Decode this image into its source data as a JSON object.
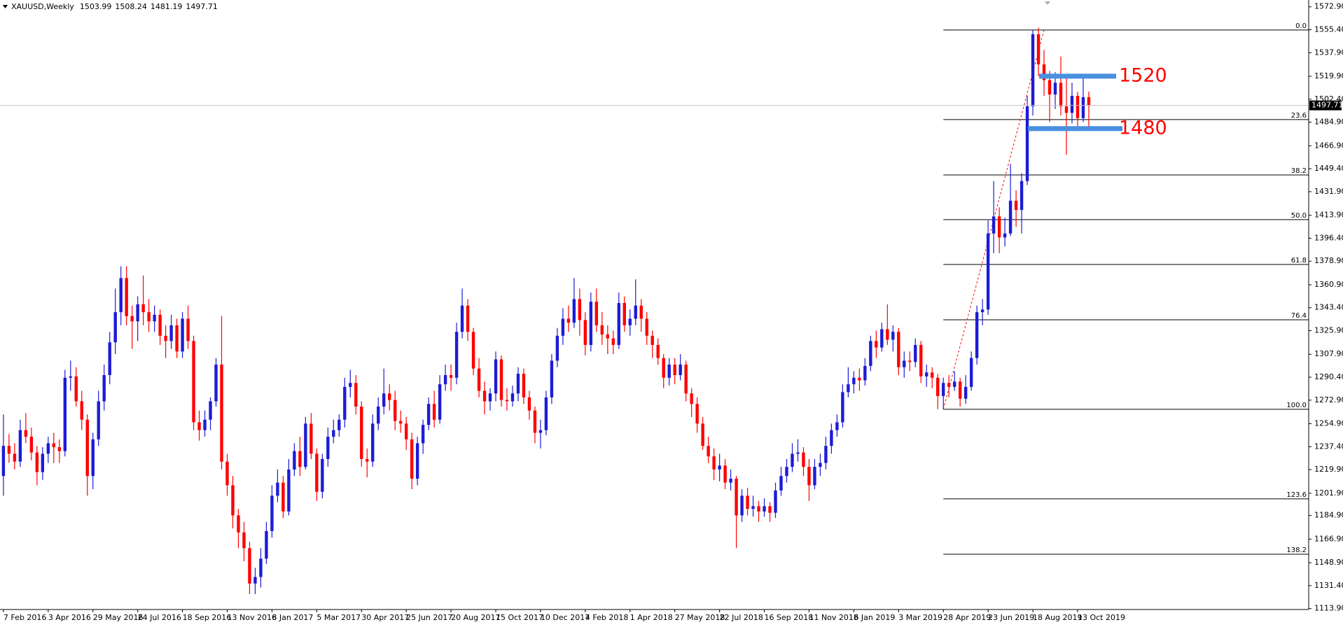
{
  "chart_data": {
    "type": "candlestick",
    "title": "XAUUSD,Weekly",
    "up_color": "#1c1cd6",
    "down_color": "#ff0000",
    "grid": false,
    "ylim": [
      1113.2,
      1578.1
    ],
    "yticks": [
      {
        "value": 1113.9,
        "label": "1113.90"
      },
      {
        "value": 1131.4,
        "label": "1131.40"
      },
      {
        "value": 1148.9,
        "label": "1148.90"
      },
      {
        "value": 1166.9,
        "label": "1166.90"
      },
      {
        "value": 1184.9,
        "label": "1184.90"
      },
      {
        "value": 1201.9,
        "label": "1201.90"
      },
      {
        "value": 1219.9,
        "label": "1219.90"
      },
      {
        "value": 1237.4,
        "label": "1237.40"
      },
      {
        "value": 1254.9,
        "label": "1254.90"
      },
      {
        "value": 1272.9,
        "label": "1272.90"
      },
      {
        "value": 1290.4,
        "label": "1290.40"
      },
      {
        "value": 1307.9,
        "label": "1307.90"
      },
      {
        "value": 1325.9,
        "label": "1325.90"
      },
      {
        "value": 1343.4,
        "label": "1343.40"
      },
      {
        "value": 1360.9,
        "label": "1360.90"
      },
      {
        "value": 1378.9,
        "label": "1378.90"
      },
      {
        "value": 1396.4,
        "label": "1396.40"
      },
      {
        "value": 1413.9,
        "label": "1413.90"
      },
      {
        "value": 1431.9,
        "label": "1431.90"
      },
      {
        "value": 1449.4,
        "label": "1449.40"
      },
      {
        "value": 1466.9,
        "label": "1466.90"
      },
      {
        "value": 1484.9,
        "label": "1484.90"
      },
      {
        "value": 1502.4,
        "label": "1502.40"
      },
      {
        "value": 1519.9,
        "label": "1519.90"
      },
      {
        "value": 1537.9,
        "label": "1537.90"
      },
      {
        "value": 1555.4,
        "label": "1555.40"
      },
      {
        "value": 1572.9,
        "label": "1572.90"
      }
    ],
    "categories": [
      "7 Feb 2016",
      null,
      null,
      null,
      null,
      null,
      null,
      null,
      "3 Apr 2016",
      null,
      null,
      null,
      null,
      null,
      null,
      null,
      "29 May 2016",
      null,
      null,
      null,
      null,
      null,
      null,
      null,
      "24 Jul 2016",
      null,
      null,
      null,
      null,
      null,
      null,
      null,
      "18 Sep 2016",
      null,
      null,
      null,
      null,
      null,
      null,
      null,
      "13 Nov 2016",
      null,
      null,
      null,
      null,
      null,
      null,
      null,
      "8 Jan 2017",
      null,
      null,
      null,
      null,
      null,
      null,
      null,
      "5 Mar 2017",
      null,
      null,
      null,
      null,
      null,
      null,
      null,
      "30 Apr 2017",
      null,
      null,
      null,
      null,
      null,
      null,
      null,
      "25 Jun 2017",
      null,
      null,
      null,
      null,
      null,
      null,
      null,
      "20 Aug 2017",
      null,
      null,
      null,
      null,
      null,
      null,
      null,
      "15 Oct 2017",
      null,
      null,
      null,
      null,
      null,
      null,
      null,
      "10 Dec 2017",
      null,
      null,
      null,
      null,
      null,
      null,
      null,
      "4 Feb 2018",
      null,
      null,
      null,
      null,
      null,
      null,
      null,
      "1 Apr 2018",
      null,
      null,
      null,
      null,
      null,
      null,
      null,
      "27 May 2018",
      null,
      null,
      null,
      null,
      null,
      null,
      null,
      "22 Jul 2018",
      null,
      null,
      null,
      null,
      null,
      null,
      null,
      "16 Sep 2018",
      null,
      null,
      null,
      null,
      null,
      null,
      null,
      "11 Nov 2018",
      null,
      null,
      null,
      null,
      null,
      null,
      null,
      "6 Jan 2019",
      null,
      null,
      null,
      null,
      null,
      null,
      null,
      "3 Mar 2019",
      null,
      null,
      null,
      null,
      null,
      null,
      null,
      "28 Apr 2019",
      null,
      null,
      null,
      null,
      null,
      null,
      null,
      "23 Jun 2019",
      null,
      null,
      null,
      null,
      null,
      null,
      null,
      "18 Aug 2019",
      null,
      null,
      null,
      null,
      null,
      null,
      null,
      "13 Oct 2019",
      null,
      null
    ],
    "ohlc": [
      [
        1215,
        1262,
        1200,
        1238
      ],
      [
        1238,
        1247,
        1225,
        1232
      ],
      [
        1232,
        1240,
        1220,
        1226
      ],
      [
        1226,
        1258,
        1222,
        1250
      ],
      [
        1250,
        1263,
        1240,
        1245
      ],
      [
        1245,
        1252,
        1227,
        1233
      ],
      [
        1233,
        1238,
        1208,
        1218
      ],
      [
        1218,
        1237,
        1212,
        1232
      ],
      [
        1232,
        1245,
        1225,
        1240
      ],
      [
        1240,
        1248,
        1225,
        1237
      ],
      [
        1237,
        1243,
        1225,
        1234
      ],
      [
        1234,
        1296,
        1230,
        1290
      ],
      [
        1290,
        1303,
        1280,
        1291
      ],
      [
        1291,
        1298,
        1268,
        1272
      ],
      [
        1272,
        1280,
        1250,
        1258
      ],
      [
        1258,
        1262,
        1200,
        1215
      ],
      [
        1215,
        1248,
        1205,
        1243
      ],
      [
        1243,
        1280,
        1238,
        1272
      ],
      [
        1272,
        1300,
        1265,
        1292
      ],
      [
        1292,
        1325,
        1285,
        1317
      ],
      [
        1317,
        1358,
        1308,
        1340
      ],
      [
        1340,
        1375,
        1330,
        1366
      ],
      [
        1366,
        1375,
        1330,
        1337
      ],
      [
        1337,
        1345,
        1312,
        1333
      ],
      [
        1333,
        1352,
        1318,
        1346
      ],
      [
        1346,
        1368,
        1330,
        1340
      ],
      [
        1340,
        1350,
        1325,
        1333
      ],
      [
        1333,
        1345,
        1325,
        1338
      ],
      [
        1338,
        1342,
        1315,
        1322
      ],
      [
        1322,
        1330,
        1305,
        1318
      ],
      [
        1318,
        1338,
        1312,
        1330
      ],
      [
        1330,
        1335,
        1305,
        1310
      ],
      [
        1310,
        1340,
        1305,
        1335
      ],
      [
        1335,
        1345,
        1312,
        1318
      ],
      [
        1318,
        1322,
        1250,
        1256
      ],
      [
        1256,
        1265,
        1242,
        1250
      ],
      [
        1250,
        1265,
        1245,
        1258
      ],
      [
        1258,
        1275,
        1250,
        1272
      ],
      [
        1272,
        1305,
        1268,
        1300
      ],
      [
        1300,
        1337,
        1220,
        1226
      ],
      [
        1226,
        1232,
        1200,
        1208
      ],
      [
        1208,
        1215,
        1175,
        1185
      ],
      [
        1185,
        1190,
        1160,
        1172
      ],
      [
        1172,
        1180,
        1150,
        1160
      ],
      [
        1160,
        1165,
        1125,
        1133
      ],
      [
        1133,
        1145,
        1125,
        1138
      ],
      [
        1138,
        1160,
        1130,
        1152
      ],
      [
        1152,
        1180,
        1148,
        1173
      ],
      [
        1173,
        1208,
        1168,
        1200
      ],
      [
        1200,
        1220,
        1195,
        1210
      ],
      [
        1210,
        1215,
        1183,
        1188
      ],
      [
        1188,
        1228,
        1185,
        1220
      ],
      [
        1220,
        1240,
        1215,
        1234
      ],
      [
        1234,
        1245,
        1215,
        1222
      ],
      [
        1222,
        1260,
        1220,
        1255
      ],
      [
        1255,
        1263,
        1228,
        1232
      ],
      [
        1232,
        1236,
        1196,
        1203
      ],
      [
        1203,
        1232,
        1198,
        1228
      ],
      [
        1228,
        1252,
        1222,
        1245
      ],
      [
        1245,
        1258,
        1240,
        1250
      ],
      [
        1250,
        1262,
        1245,
        1258
      ],
      [
        1258,
        1290,
        1252,
        1283
      ],
      [
        1283,
        1296,
        1275,
        1286
      ],
      [
        1286,
        1292,
        1262,
        1268
      ],
      [
        1268,
        1272,
        1222,
        1228
      ],
      [
        1228,
        1236,
        1214,
        1226
      ],
      [
        1226,
        1262,
        1222,
        1255
      ],
      [
        1255,
        1275,
        1250,
        1268
      ],
      [
        1268,
        1297,
        1262,
        1278
      ],
      [
        1278,
        1285,
        1265,
        1273
      ],
      [
        1273,
        1280,
        1250,
        1257
      ],
      [
        1257,
        1265,
        1248,
        1255
      ],
      [
        1255,
        1260,
        1235,
        1243
      ],
      [
        1243,
        1248,
        1205,
        1213
      ],
      [
        1213,
        1245,
        1208,
        1240
      ],
      [
        1240,
        1258,
        1232,
        1254
      ],
      [
        1254,
        1275,
        1250,
        1270
      ],
      [
        1270,
        1280,
        1252,
        1258
      ],
      [
        1258,
        1292,
        1255,
        1285
      ],
      [
        1285,
        1300,
        1280,
        1292
      ],
      [
        1292,
        1300,
        1280,
        1290
      ],
      [
        1290,
        1332,
        1285,
        1325
      ],
      [
        1325,
        1358,
        1320,
        1345
      ],
      [
        1345,
        1350,
        1318,
        1325
      ],
      [
        1325,
        1328,
        1292,
        1297
      ],
      [
        1297,
        1305,
        1275,
        1280
      ],
      [
        1280,
        1287,
        1262,
        1272
      ],
      [
        1272,
        1282,
        1265,
        1278
      ],
      [
        1278,
        1310,
        1272,
        1304
      ],
      [
        1304,
        1307,
        1268,
        1273
      ],
      [
        1273,
        1282,
        1265,
        1272
      ],
      [
        1272,
        1284,
        1268,
        1278
      ],
      [
        1278,
        1298,
        1272,
        1293
      ],
      [
        1293,
        1297,
        1270,
        1275
      ],
      [
        1275,
        1280,
        1258,
        1265
      ],
      [
        1265,
        1268,
        1240,
        1248
      ],
      [
        1248,
        1258,
        1236,
        1250
      ],
      [
        1250,
        1280,
        1246,
        1275
      ],
      [
        1275,
        1308,
        1270,
        1303
      ],
      [
        1303,
        1328,
        1298,
        1322
      ],
      [
        1322,
        1343,
        1315,
        1335
      ],
      [
        1335,
        1345,
        1325,
        1332
      ],
      [
        1332,
        1366,
        1328,
        1350
      ],
      [
        1350,
        1358,
        1322,
        1334
      ],
      [
        1334,
        1340,
        1307,
        1315
      ],
      [
        1315,
        1355,
        1310,
        1348
      ],
      [
        1348,
        1358,
        1325,
        1330
      ],
      [
        1330,
        1340,
        1315,
        1323
      ],
      [
        1323,
        1330,
        1308,
        1320
      ],
      [
        1320,
        1326,
        1308,
        1315
      ],
      [
        1315,
        1355,
        1312,
        1347
      ],
      [
        1347,
        1352,
        1325,
        1330
      ],
      [
        1330,
        1342,
        1322,
        1335
      ],
      [
        1335,
        1365,
        1330,
        1345
      ],
      [
        1345,
        1350,
        1325,
        1335
      ],
      [
        1335,
        1340,
        1315,
        1322
      ],
      [
        1322,
        1326,
        1305,
        1315
      ],
      [
        1315,
        1320,
        1300,
        1305
      ],
      [
        1305,
        1308,
        1282,
        1290
      ],
      [
        1290,
        1305,
        1284,
        1300
      ],
      [
        1300,
        1305,
        1285,
        1292
      ],
      [
        1292,
        1308,
        1288,
        1300
      ],
      [
        1300,
        1303,
        1272,
        1278
      ],
      [
        1278,
        1282,
        1260,
        1270
      ],
      [
        1270,
        1275,
        1248,
        1255
      ],
      [
        1255,
        1260,
        1235,
        1238
      ],
      [
        1238,
        1245,
        1225,
        1230
      ],
      [
        1230,
        1236,
        1212,
        1220
      ],
      [
        1220,
        1232,
        1211,
        1223
      ],
      [
        1223,
        1228,
        1205,
        1210
      ],
      [
        1210,
        1220,
        1204,
        1213
      ],
      [
        1213,
        1215,
        1160,
        1185
      ],
      [
        1185,
        1205,
        1180,
        1200
      ],
      [
        1200,
        1206,
        1185,
        1190
      ],
      [
        1190,
        1200,
        1184,
        1192
      ],
      [
        1192,
        1196,
        1180,
        1188
      ],
      [
        1188,
        1198,
        1184,
        1192
      ],
      [
        1192,
        1195,
        1180,
        1187
      ],
      [
        1187,
        1210,
        1183,
        1204
      ],
      [
        1204,
        1222,
        1200,
        1215
      ],
      [
        1215,
        1228,
        1210,
        1222
      ],
      [
        1222,
        1240,
        1218,
        1232
      ],
      [
        1232,
        1243,
        1226,
        1233
      ],
      [
        1233,
        1237,
        1215,
        1222
      ],
      [
        1222,
        1228,
        1196,
        1208
      ],
      [
        1208,
        1228,
        1205,
        1222
      ],
      [
        1222,
        1232,
        1215,
        1225
      ],
      [
        1225,
        1245,
        1220,
        1238
      ],
      [
        1238,
        1255,
        1232,
        1250
      ],
      [
        1250,
        1262,
        1245,
        1256
      ],
      [
        1256,
        1285,
        1252,
        1279
      ],
      [
        1279,
        1298,
        1275,
        1285
      ],
      [
        1285,
        1295,
        1278,
        1290
      ],
      [
        1290,
        1297,
        1280,
        1288
      ],
      [
        1288,
        1305,
        1284,
        1299
      ],
      [
        1299,
        1322,
        1295,
        1318
      ],
      [
        1318,
        1326,
        1305,
        1313
      ],
      [
        1313,
        1332,
        1310,
        1327
      ],
      [
        1327,
        1346,
        1315,
        1319
      ],
      [
        1319,
        1330,
        1310,
        1325
      ],
      [
        1325,
        1328,
        1292,
        1298
      ],
      [
        1298,
        1310,
        1290,
        1303
      ],
      [
        1303,
        1310,
        1295,
        1302
      ],
      [
        1302,
        1320,
        1298,
        1315
      ],
      [
        1315,
        1318,
        1286,
        1291
      ],
      [
        1291,
        1300,
        1283,
        1294
      ],
      [
        1294,
        1298,
        1282,
        1290
      ],
      [
        1290,
        1293,
        1266,
        1276
      ],
      [
        1276,
        1290,
        1266,
        1286
      ],
      [
        1286,
        1292,
        1275,
        1283
      ],
      [
        1283,
        1295,
        1280,
        1287
      ],
      [
        1287,
        1290,
        1268,
        1274
      ],
      [
        1274,
        1292,
        1270,
        1283
      ],
      [
        1283,
        1310,
        1280,
        1305
      ],
      [
        1305,
        1345,
        1300,
        1340
      ],
      [
        1340,
        1350,
        1330,
        1342
      ],
      [
        1342,
        1410,
        1338,
        1400
      ],
      [
        1400,
        1440,
        1385,
        1413
      ],
      [
        1413,
        1420,
        1385,
        1397
      ],
      [
        1397,
        1412,
        1390,
        1400
      ],
      [
        1400,
        1453,
        1398,
        1425
      ],
      [
        1425,
        1433,
        1405,
        1418
      ],
      [
        1418,
        1446,
        1400,
        1440
      ],
      [
        1440,
        1505,
        1437,
        1497
      ],
      [
        1497,
        1555,
        1490,
        1552
      ],
      [
        1552,
        1557,
        1520,
        1529
      ],
      [
        1529,
        1540,
        1505,
        1517
      ],
      [
        1517,
        1524,
        1485,
        1506
      ],
      [
        1506,
        1523,
        1495,
        1515
      ],
      [
        1515,
        1535,
        1490,
        1497
      ],
      [
        1497,
        1520,
        1460,
        1492
      ],
      [
        1492,
        1515,
        1484,
        1505
      ],
      [
        1505,
        1508,
        1478,
        1488
      ],
      [
        1488,
        1520,
        1485,
        1504
      ],
      [
        1503.99,
        1508.24,
        1481.19,
        1497.71
      ]
    ],
    "fibonacci": {
      "high": 1555.2,
      "low": 1265.9,
      "color": "#000000",
      "trend_color": "#ff0000",
      "levels": [
        {
          "value": 0,
          "label": "0.0"
        },
        23.6,
        38.2,
        {
          "value": 50,
          "label": "50.0"
        },
        61.8,
        76.4,
        {
          "value": 100,
          "label": "100.0"
        },
        123.6,
        138.2
      ]
    },
    "annotations": {
      "levels": [
        1520,
        1480
      ],
      "color": "#ff0000",
      "band_color": "#4a8fe0"
    }
  }
}
